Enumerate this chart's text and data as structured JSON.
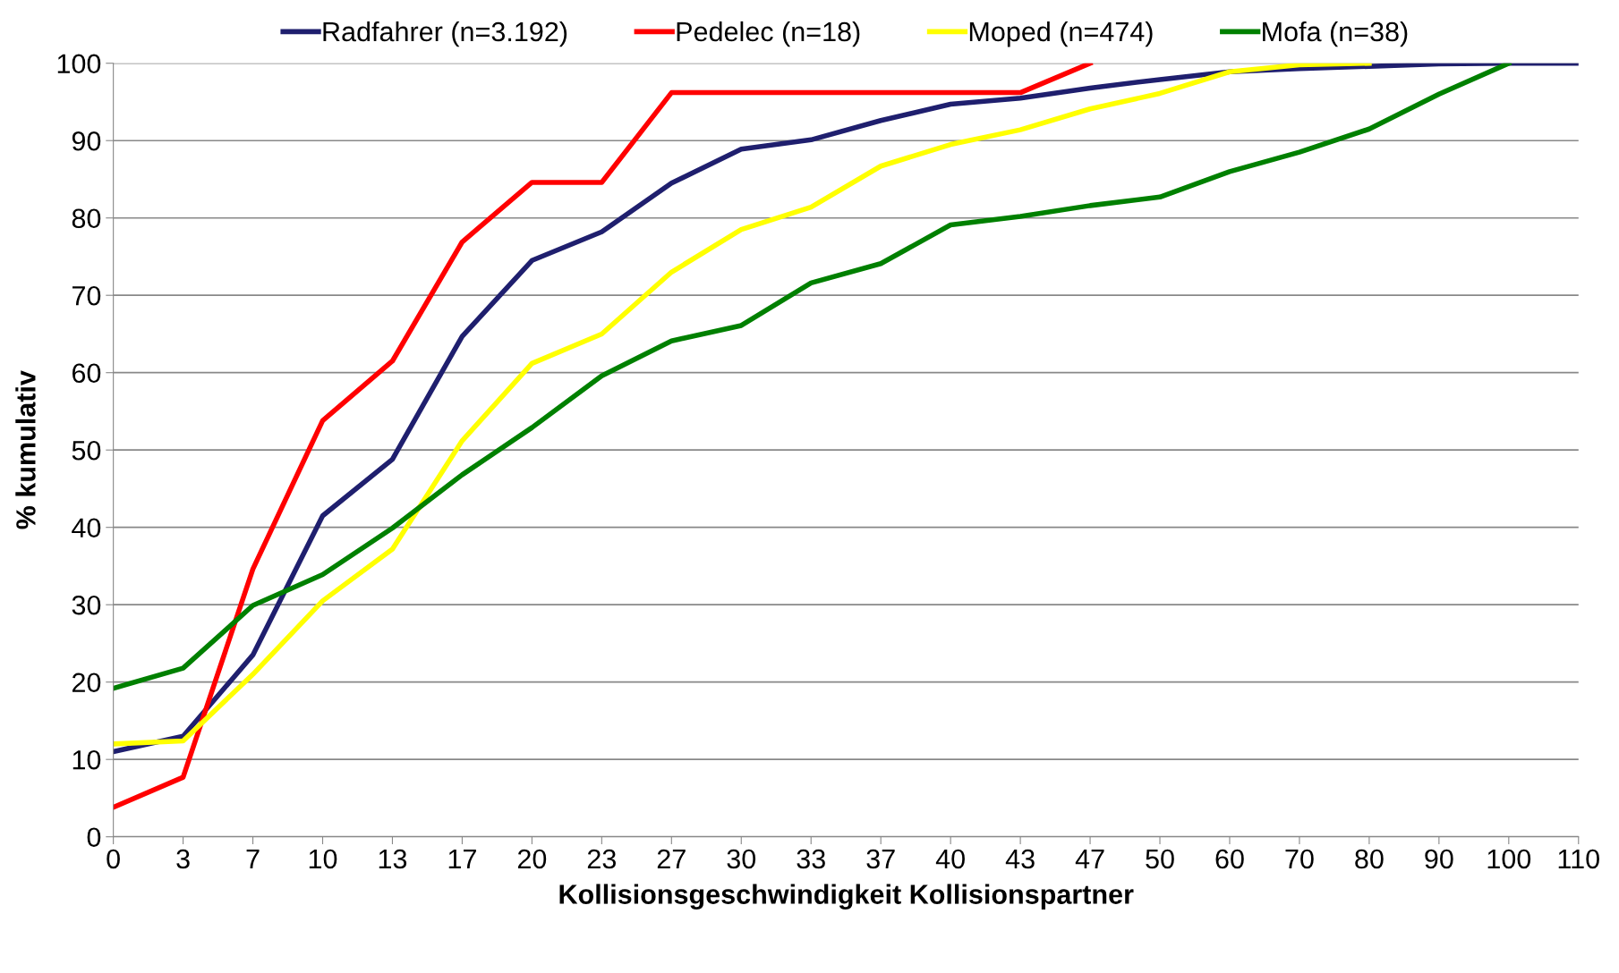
{
  "chart_data": {
    "type": "line",
    "xlabel": "Kollisionsgeschwindigkeit Kollisionspartner",
    "ylabel": "% kumulativ",
    "categories": [
      "0",
      "3",
      "7",
      "10",
      "13",
      "17",
      "20",
      "23",
      "27",
      "30",
      "33",
      "37",
      "40",
      "43",
      "47",
      "50",
      "60",
      "70",
      "80",
      "90",
      "100",
      "110"
    ],
    "ylim": [
      0,
      100
    ],
    "yticks": [
      0,
      10,
      20,
      30,
      40,
      50,
      60,
      70,
      80,
      90,
      100
    ],
    "grid": "y",
    "legend": "top",
    "marker": "none",
    "line_style": "solid",
    "series": [
      {
        "name": "Radfahrer (n=3.192)",
        "color": "#1f1f6e",
        "values": [
          11,
          13,
          23.5,
          41.5,
          48.8,
          64.7,
          74.5,
          78.2,
          84.5,
          88.9,
          90.1,
          92.6,
          94.7,
          95.5,
          96.8,
          97.9,
          98.9,
          99.3,
          99.6,
          99.9,
          100,
          100
        ]
      },
      {
        "name": "Pedelec (n=18)",
        "color": "#ff0000",
        "values": [
          3.8,
          7.7,
          34.6,
          53.8,
          61.5,
          76.9,
          84.6,
          84.6,
          96.2,
          96.2,
          96.2,
          96.2,
          96.2,
          96.2,
          100,
          null,
          null,
          null,
          null,
          null,
          null,
          null
        ]
      },
      {
        "name": "Moped (n=474)",
        "color": "#ffff00",
        "values": [
          12,
          12.4,
          21,
          30.5,
          37.2,
          51.2,
          61.2,
          65,
          73,
          78.5,
          81.4,
          86.7,
          89.5,
          91.4,
          94.1,
          96.1,
          98.9,
          99.8,
          100,
          null,
          null,
          null
        ]
      },
      {
        "name": "Mofa (n=38)",
        "color": "#008000",
        "values": [
          19.2,
          21.8,
          29.9,
          33.9,
          39.9,
          46.8,
          52.9,
          59.6,
          64.1,
          66.1,
          71.6,
          74.1,
          79.1,
          80.2,
          81.6,
          82.7,
          86,
          88.5,
          91.5,
          96,
          100,
          null
        ]
      }
    ]
  }
}
